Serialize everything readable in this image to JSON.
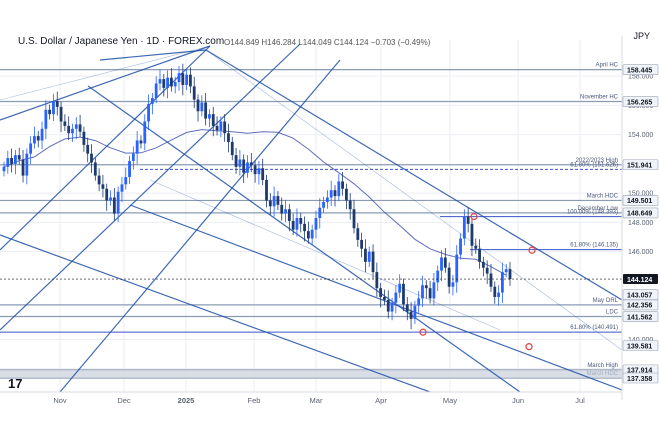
{
  "header": {
    "symbol_title": "U.S. Dollar / Japanese Yen · 1D · FOREX.com",
    "ohlc_text": "O144.849 H146.284 L144.049 C144.124 −0.703 (−0.49%)",
    "currency": "JPY"
  },
  "watermark": "17",
  "colors": {
    "up": "#2962ff",
    "down": "#1e3a6e",
    "channel": "#1c4fa8",
    "level_line": "#8a9bb5",
    "fib_line": "#3a55c8",
    "last_price_bg": "#131722",
    "marker": "#e5484d",
    "grid": "#eceef3"
  },
  "chart_data": {
    "type": "candlestick",
    "symbol": "USD/JPY",
    "timeframe": "1D",
    "x_axis": {
      "tick_labels": [
        "Nov",
        "Dec",
        "2025",
        "Feb",
        "Mar",
        "Apr",
        "May",
        "Jun",
        "Jul"
      ]
    },
    "y_axis": {
      "tick_values": [
        158.0,
        156.0,
        154.0,
        150.0,
        148.0,
        146.0,
        140.0,
        138.0
      ],
      "range": [
        136.4,
        160.2
      ]
    },
    "closes": [
      151.8,
      152.4,
      152.0,
      152.6,
      152.3,
      151.2,
      152.7,
      153.4,
      153.9,
      153.6,
      154.4,
      155.7,
      155.4,
      156.3,
      155.9,
      154.9,
      154.6,
      154.1,
      154.4,
      154.7,
      154.2,
      153.3,
      152.7,
      152.1,
      151.2,
      150.6,
      150.3,
      149.5,
      149.7,
      148.6,
      150.1,
      150.6,
      151.1,
      152.2,
      152.7,
      153.6,
      153.4,
      154.9,
      156.1,
      156.5,
      157.5,
      157.8,
      157.2,
      157.9,
      157.3,
      157.6,
      158.2,
      157.4,
      158.1,
      157.3,
      156.4,
      155.6,
      156.2,
      155.1,
      155.4,
      154.6,
      154.3,
      154.9,
      154.1,
      153.5,
      152.6,
      151.8,
      152.3,
      151.4,
      152.1,
      151.9,
      151.3,
      151.7,
      150.9,
      149.5,
      149.1,
      149.8,
      149.2,
      148.6,
      148.9,
      148.1,
      147.5,
      148.3,
      147.9,
      147.4,
      146.9,
      147.5,
      148.3,
      149.0,
      149.4,
      149.7,
      150.2,
      149.8,
      150.8,
      150.3,
      149.5,
      148.9,
      147.6,
      146.8,
      146.2,
      145.3,
      146.0,
      144.6,
      143.5,
      142.9,
      142.7,
      141.9,
      142.5,
      143.2,
      143.8,
      142.4,
      141.9,
      141.4,
      142.3,
      142.8,
      143.7,
      143.5,
      142.8,
      143.9,
      144.7,
      145.6,
      144.9,
      143.6,
      143.9,
      145.8,
      146.9,
      148.4,
      147.9,
      146.4,
      146.2,
      145.3,
      144.9,
      144.5,
      143.6,
      142.9,
      143.2,
      144.6,
      144.8,
      144.124
    ],
    "start_label": "Oct",
    "price_labels": [
      {
        "text": "158.445",
        "value": 158.445,
        "style": "level"
      },
      {
        "text": "156.265",
        "value": 156.265,
        "style": "level"
      },
      {
        "text": "151.941",
        "value": 151.941,
        "style": "level"
      },
      {
        "text": "149.501",
        "value": 149.501,
        "style": "level"
      },
      {
        "text": "148.649",
        "value": 148.649,
        "style": "level"
      },
      {
        "text": "144.124",
        "value": 144.124,
        "style": "last"
      },
      {
        "text": "143.057",
        "value": 143.057,
        "style": "level"
      },
      {
        "text": "142.356",
        "value": 142.356,
        "style": "level"
      },
      {
        "text": "141.562",
        "value": 141.562,
        "style": "level"
      },
      {
        "text": "139.581",
        "value": 139.581,
        "style": "level"
      },
      {
        "text": "137.914",
        "value": 137.914,
        "style": "level"
      },
      {
        "text": "137.358",
        "value": 137.358,
        "style": "level"
      }
    ],
    "horizontal_levels": [
      {
        "name": "April HC",
        "value": 158.445,
        "label": "April HC"
      },
      {
        "name": "November HC",
        "value": 156.265,
        "label": "November HC"
      },
      {
        "name": "2022/2023 High",
        "value": 151.941,
        "label": "2022/2023 High"
      },
      {
        "name": "61.8% retracement",
        "value": 151.626,
        "label": "61.80% (151.626)"
      },
      {
        "name": "March HDC",
        "value": 149.501,
        "label": "March HDC"
      },
      {
        "name": "December Low",
        "value": 148.649,
        "label": "December Low"
      },
      {
        "name": "100% extension",
        "value": 148.393,
        "label": "100.00% (148.393)"
      },
      {
        "name": "61.8% retracement 2",
        "value": 146.135,
        "label": "61.80% (146.135)"
      },
      {
        "name": "May ORL",
        "value": 142.356,
        "label": "May ORL"
      },
      {
        "name": "LDC",
        "value": 141.562,
        "label": "LDC"
      },
      {
        "name": "61.8% extension",
        "value": 140.491,
        "label": "61.80% (140.491)"
      },
      {
        "name": "March High",
        "value": 137.914,
        "label": "March High"
      },
      {
        "name": "March HDC low",
        "value": 137.358,
        "label": "March HDC"
      }
    ]
  }
}
